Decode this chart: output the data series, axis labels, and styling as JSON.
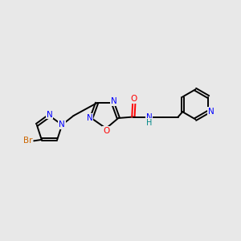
{
  "bg_color": "#e8e8e8",
  "bond_color": "#000000",
  "N_color": "#0000ff",
  "O_color": "#ff0000",
  "Br_color": "#cc6600",
  "NH_color": "#008888",
  "line_width": 1.4,
  "dbo": 0.055,
  "xlim": [
    0,
    10
  ],
  "ylim": [
    2,
    8
  ],
  "figsize": [
    3.0,
    3.0
  ],
  "dpi": 100,
  "font_size": 7.5
}
